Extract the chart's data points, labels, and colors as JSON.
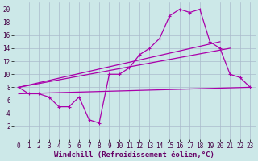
{
  "xlabel": "Windchill (Refroidissement éolien,°C)",
  "bg_color": "#cce8e8",
  "line_color": "#aa00aa",
  "grid_color": "#aabbcc",
  "xlim": [
    -0.5,
    23.5
  ],
  "ylim": [
    0,
    21
  ],
  "xticks": [
    0,
    1,
    2,
    3,
    4,
    5,
    6,
    7,
    8,
    9,
    10,
    11,
    12,
    13,
    14,
    15,
    16,
    17,
    18,
    19,
    20,
    21,
    22,
    23
  ],
  "yticks": [
    2,
    4,
    6,
    8,
    10,
    12,
    14,
    16,
    18,
    20
  ],
  "line1_x": [
    0,
    1,
    2,
    3,
    4,
    5,
    6,
    7,
    8,
    9,
    10,
    11,
    12,
    13,
    14,
    15,
    16,
    17,
    18,
    19,
    20,
    21,
    22,
    23
  ],
  "line1_y": [
    8,
    7,
    7,
    6.5,
    5,
    5,
    6.5,
    3,
    2.5,
    10,
    10,
    11,
    13,
    14,
    15.5,
    19,
    20,
    19.5,
    20,
    15,
    14,
    10,
    9.5,
    8
  ],
  "line2_x": [
    0,
    20
  ],
  "line2_y": [
    8,
    15
  ],
  "line3_x": [
    0,
    21
  ],
  "line3_y": [
    8,
    14
  ],
  "line4_x": [
    0,
    23
  ],
  "line4_y": [
    7,
    8
  ],
  "xlabel_color": "#660066",
  "xlabel_fontsize": 6.5,
  "tick_fontsize": 5.5
}
